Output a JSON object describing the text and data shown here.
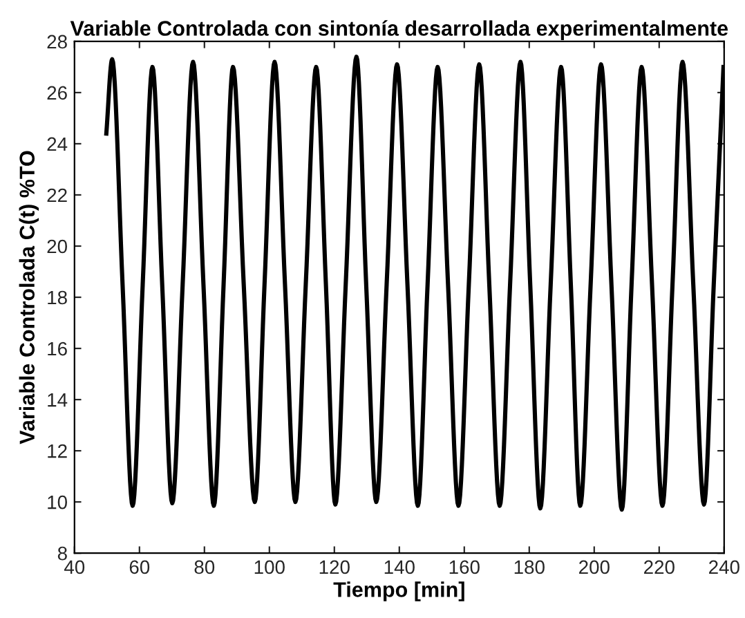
{
  "chart_data": {
    "type": "line",
    "title": "Variable Controlada con sintonía desarrollada experimentalmente",
    "xlabel": "Tiempo [min]",
    "ylabel": "Variable Controlada C(t) %TO",
    "series": [
      {
        "color": "#000000",
        "x": [
          49.8,
          51.6,
          54.8,
          57.9,
          61.0,
          64.0,
          67.0,
          70.1,
          73.3,
          76.5,
          79.7,
          82.9,
          85.9,
          88.8,
          92.1,
          95.5,
          98.5,
          101.6,
          104.8,
          108.0,
          111.2,
          114.4,
          117.4,
          120.3,
          123.5,
          126.8,
          129.8,
          132.9,
          136.1,
          139.3,
          142.5,
          145.7,
          148.7,
          151.8,
          155.0,
          158.2,
          161.4,
          164.6,
          167.7,
          170.9,
          174.1,
          177.3,
          180.3,
          183.4,
          186.6,
          189.8,
          192.8,
          195.7,
          198.9,
          202.1,
          205.3,
          208.5,
          211.5,
          214.6,
          217.8,
          221.0,
          224.1,
          227.2,
          230.5,
          233.8,
          236.8,
          239.8
        ],
        "values": [
          24.4,
          27.3,
          18.5,
          9.85,
          18.5,
          27.0,
          18.5,
          9.95,
          18.5,
          27.2,
          18.5,
          9.85,
          18.5,
          27.0,
          18.5,
          10.0,
          18.5,
          27.2,
          18.5,
          10.0,
          18.5,
          27.0,
          18.5,
          9.9,
          18.5,
          27.4,
          18.5,
          10.0,
          18.5,
          27.1,
          18.5,
          9.85,
          18.5,
          27.0,
          18.5,
          9.85,
          18.5,
          27.1,
          18.5,
          9.85,
          18.5,
          27.2,
          18.5,
          9.75,
          18.5,
          27.0,
          18.5,
          9.85,
          18.5,
          27.1,
          18.5,
          9.7,
          18.5,
          27.0,
          18.5,
          9.85,
          18.5,
          27.2,
          18.5,
          9.9,
          18.5,
          27.0
        ]
      }
    ],
    "xlim": [
      40,
      240
    ],
    "ylim": [
      8,
      28
    ],
    "xticks": [
      40,
      60,
      80,
      100,
      120,
      140,
      160,
      180,
      200,
      220,
      240
    ],
    "yticks": [
      8,
      10,
      12,
      14,
      16,
      18,
      20,
      22,
      24,
      26,
      28
    ],
    "grid": false,
    "legend": false,
    "marker": "none",
    "line_style": "solid"
  }
}
